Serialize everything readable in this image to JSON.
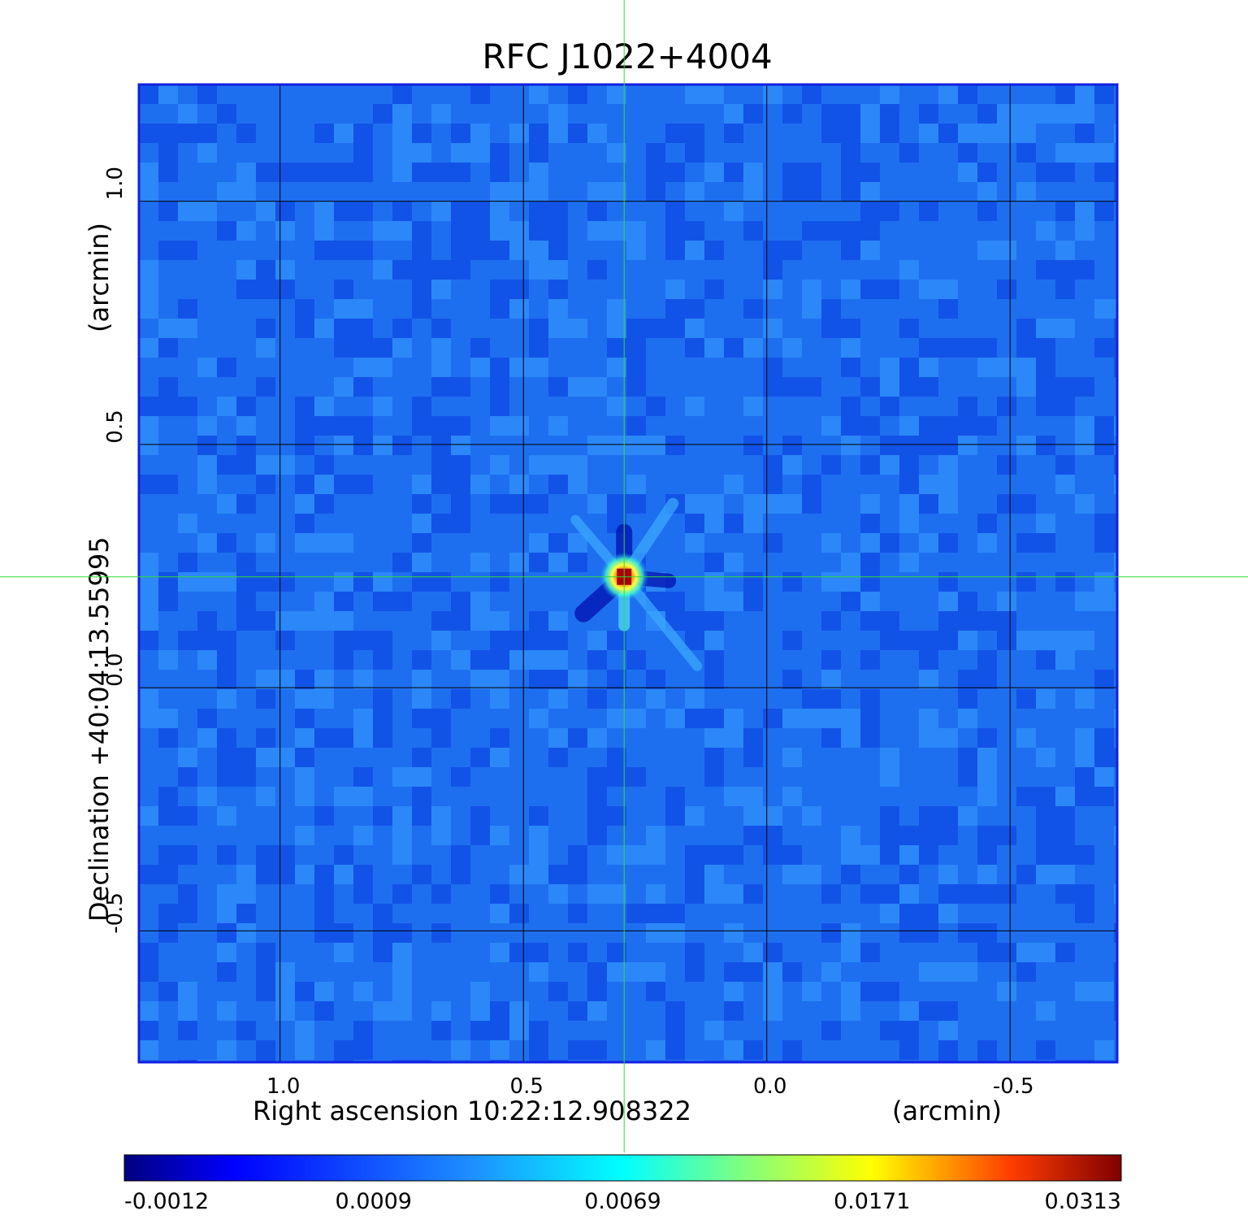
{
  "chart_data": {
    "type": "heatmap",
    "title": "RFC J1022+4004",
    "title_color": "#0a14d2",
    "xlabel": "Right ascension  10:22:12.908322",
    "xlabel_unit": "(arcmin)",
    "ylabel": "Declination  +40:04:13.55995",
    "ylabel_unit": "(arcmin)",
    "x_ticks": [
      {
        "value": 1.0,
        "label": "1.0"
      },
      {
        "value": 0.5,
        "label": "0.5"
      },
      {
        "value": 0.0,
        "label": "0.0"
      },
      {
        "value": -0.5,
        "label": "-0.5"
      }
    ],
    "y_ticks": [
      {
        "value": 1.0,
        "label": "1.0"
      },
      {
        "value": 0.5,
        "label": "0.5"
      },
      {
        "value": 0.0,
        "label": "0.0"
      },
      {
        "value": -0.5,
        "label": "-0.5"
      }
    ],
    "xlim": [
      1.29,
      -0.72
    ],
    "ylim": [
      -0.77,
      1.24
    ],
    "grid": true,
    "crosshair": {
      "x": 0.293,
      "y": 0.228,
      "color": "#33dd33"
    },
    "source": {
      "x": 0.293,
      "y": 0.228,
      "peak": 0.0313
    },
    "colormap": "jet",
    "colorbar": {
      "ticks": [
        "-0.0012",
        "0.0009",
        "0.0069",
        "0.0171",
        "0.0313"
      ],
      "vmin": -0.0012,
      "vmax": 0.0313
    },
    "frame_color": "#1020e0"
  }
}
